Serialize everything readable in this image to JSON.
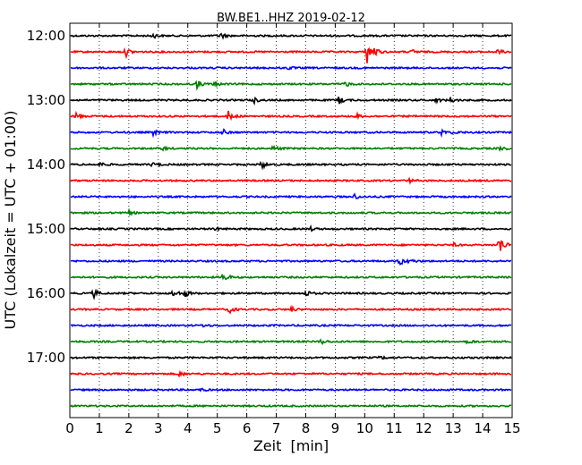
{
  "chart_data": {
    "type": "line",
    "title": "BW.BE1..HHZ 2019-02-12",
    "xlabel": "Zeit  [min]",
    "ylabel": "UTC (Lokalzeit = UTC + 01:00)",
    "xlim": [
      0,
      15
    ],
    "x_ticks": [
      "0",
      "1",
      "2",
      "3",
      "4",
      "5",
      "6",
      "7",
      "8",
      "9",
      "10",
      "11",
      "12",
      "13",
      "14",
      "15"
    ],
    "y_ticks": [
      "12:00",
      "13:00",
      "14:00",
      "15:00",
      "16:00",
      "17:00"
    ],
    "grid": "vertical dotted",
    "trace_colors": [
      "#000000",
      "#ff0000",
      "#0000ff",
      "#008000"
    ],
    "series": [
      {
        "row_start": "12:00",
        "events": [
          [
            2.8,
            3
          ],
          [
            5.1,
            4
          ]
        ]
      },
      {
        "row_start": "12:15",
        "events": [
          [
            1.9,
            5
          ],
          [
            10.05,
            16
          ],
          [
            10.3,
            5
          ],
          [
            11.6,
            3
          ],
          [
            14.5,
            3
          ]
        ]
      },
      {
        "row_start": "12:30",
        "events": [
          [
            7.4,
            2
          ]
        ]
      },
      {
        "row_start": "12:45",
        "events": [
          [
            4.3,
            5
          ],
          [
            4.9,
            3
          ],
          [
            9.3,
            4
          ]
        ]
      },
      {
        "row_start": "13:00",
        "events": [
          [
            6.2,
            4
          ],
          [
            9.1,
            5
          ],
          [
            12.4,
            3
          ],
          [
            12.9,
            3
          ]
        ]
      },
      {
        "row_start": "13:15",
        "events": [
          [
            0.2,
            4
          ],
          [
            5.35,
            8
          ],
          [
            9.7,
            3
          ]
        ]
      },
      {
        "row_start": "13:30",
        "events": [
          [
            2.8,
            4
          ],
          [
            5.2,
            3
          ],
          [
            12.6,
            3
          ],
          [
            13.0,
            2
          ]
        ]
      },
      {
        "row_start": "13:45",
        "events": [
          [
            3.1,
            3
          ],
          [
            6.9,
            4
          ],
          [
            14.6,
            3
          ]
        ]
      },
      {
        "row_start": "14:00",
        "events": [
          [
            1.0,
            3
          ],
          [
            2.8,
            3
          ],
          [
            6.5,
            5
          ]
        ]
      },
      {
        "row_start": "14:15",
        "events": [
          [
            11.5,
            2
          ]
        ]
      },
      {
        "row_start": "14:30",
        "events": [
          [
            9.6,
            4
          ]
        ]
      },
      {
        "row_start": "14:45",
        "events": [
          [
            2.0,
            2
          ]
        ]
      },
      {
        "row_start": "15:00",
        "events": [
          [
            4.9,
            2
          ],
          [
            8.1,
            3
          ]
        ]
      },
      {
        "row_start": "15:15",
        "events": [
          [
            13.0,
            2
          ],
          [
            14.55,
            14
          ]
        ]
      },
      {
        "row_start": "15:30",
        "events": [
          [
            11.15,
            6
          ],
          [
            11.5,
            3
          ]
        ]
      },
      {
        "row_start": "15:45",
        "events": [
          [
            5.2,
            6
          ]
        ]
      },
      {
        "row_start": "16:00",
        "events": [
          [
            0.8,
            5
          ],
          [
            3.5,
            6
          ],
          [
            3.9,
            4
          ],
          [
            8.0,
            4
          ]
        ]
      },
      {
        "row_start": "16:15",
        "events": [
          [
            5.4,
            5
          ],
          [
            7.5,
            3
          ]
        ]
      },
      {
        "row_start": "16:30",
        "events": [
          [
            4.5,
            2
          ]
        ]
      },
      {
        "row_start": "16:45",
        "events": [
          [
            8.5,
            3
          ],
          [
            13.5,
            3
          ]
        ]
      },
      {
        "row_start": "17:00",
        "events": [
          [
            10.5,
            2
          ]
        ]
      },
      {
        "row_start": "17:15",
        "events": [
          [
            3.7,
            3
          ]
        ]
      },
      {
        "row_start": "17:30",
        "events": [
          [
            4.4,
            2
          ]
        ]
      },
      {
        "row_start": "17:45",
        "events": []
      }
    ]
  }
}
